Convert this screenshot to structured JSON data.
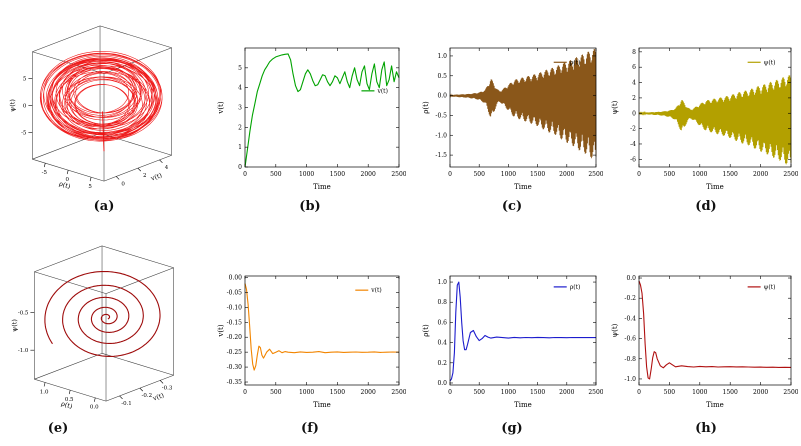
{
  "figure": {
    "background": "#ffffff"
  },
  "labels": {
    "a": "(a)",
    "b": "(b)",
    "c": "(c)",
    "d": "(d)",
    "e": "(e)",
    "f": "(f)",
    "g": "(g)",
    "h": "(h)"
  },
  "chart_data": [
    {
      "id": "a",
      "type": "3d-trajectory",
      "trajectory": "torus",
      "color": "#ee1111",
      "description": "dense quasi-periodic red attractor filling a 3D box, short vertical transient below",
      "axes": {
        "left": {
          "label": "ψ(t)",
          "ticks": [
            {
              "l": "5",
              "f": 0.75
            },
            {
              "l": "0",
              "f": 0.5
            },
            {
              "l": "-5",
              "f": 0.25
            }
          ]
        },
        "bottom": {
          "label": "ρ(t)",
          "ticks": [
            {
              "l": "-5",
              "f": 0.18
            },
            {
              "l": "0",
              "f": 0.5
            },
            {
              "l": "5",
              "f": 0.82
            }
          ]
        },
        "right": {
          "label": "v(t)",
          "ticks": [
            {
              "l": "0",
              "f": 0.18
            },
            {
              "l": "2",
              "f": 0.5
            },
            {
              "l": "4",
              "f": 0.82
            }
          ]
        }
      }
    },
    {
      "id": "b",
      "type": "line",
      "color": "#00a300",
      "xlabel": "Time",
      "ylabel": "v(t)",
      "legend": "v(t)",
      "legend_frac": [
        0.86,
        0.36
      ],
      "xlim": [
        0,
        2500
      ],
      "ylim": [
        0,
        6
      ],
      "xtick_v": [
        0,
        500,
        1000,
        1500,
        2000,
        2500
      ],
      "xtick_l": [
        "0",
        "500",
        "1000",
        "1500",
        "2000",
        "2500"
      ],
      "ytick_v": [
        0,
        1,
        2,
        3,
        4,
        5
      ],
      "ytick_l": [
        "0",
        "1",
        "2",
        "3",
        "4",
        "5"
      ],
      "x": [
        0,
        40,
        80,
        120,
        160,
        200,
        240,
        280,
        320,
        360,
        400,
        450,
        500,
        550,
        600,
        650,
        700,
        740,
        780,
        820,
        860,
        900,
        940,
        980,
        1020,
        1060,
        1100,
        1140,
        1180,
        1220,
        1260,
        1300,
        1340,
        1380,
        1420,
        1460,
        1500,
        1540,
        1580,
        1620,
        1660,
        1700,
        1740,
        1780,
        1820,
        1860,
        1900,
        1940,
        1980,
        2020,
        2060,
        2100,
        2140,
        2180,
        2220,
        2260,
        2300,
        2340,
        2380,
        2420,
        2460,
        2500
      ],
      "y": [
        0,
        0.9,
        1.8,
        2.6,
        3.2,
        3.8,
        4.2,
        4.6,
        4.9,
        5.1,
        5.3,
        5.45,
        5.55,
        5.6,
        5.65,
        5.68,
        5.7,
        5.4,
        4.7,
        4.1,
        3.8,
        3.9,
        4.3,
        4.7,
        4.9,
        4.7,
        4.35,
        4.1,
        4.15,
        4.4,
        4.65,
        4.6,
        4.3,
        4.1,
        4.3,
        4.6,
        4.5,
        4.2,
        4.5,
        4.8,
        4.3,
        4.0,
        4.6,
        5.0,
        4.4,
        4.1,
        4.8,
        5.1,
        4.2,
        3.9,
        4.7,
        5.2,
        4.3,
        4.0,
        4.9,
        5.3,
        4.1,
        4.4,
        5.1,
        4.3,
        4.8,
        4.5
      ]
    },
    {
      "id": "c",
      "type": "oscillatory-envelope",
      "color": "#8a571a",
      "xlabel": "Time",
      "ylabel": "ρ(t)",
      "legend": "ρ(t)",
      "legend_frac": [
        0.82,
        0.12
      ],
      "xlim": [
        0,
        2500
      ],
      "ylim": [
        -1.8,
        1.2
      ],
      "xtick_v": [
        0,
        500,
        1000,
        1500,
        2000,
        2500
      ],
      "xtick_l": [
        "0",
        "500",
        "1000",
        "1500",
        "2000",
        "2500"
      ],
      "ytick_v": [
        1.0,
        0.5,
        0.0,
        -0.5,
        -1.0,
        -1.5
      ],
      "ytick_l": [
        "1.0",
        "0.5",
        "0.0",
        "-0.5",
        "-1.0",
        "-1.5"
      ],
      "env_x": [
        0,
        100,
        200,
        300,
        400,
        500,
        600,
        650,
        700,
        750,
        800,
        850,
        900,
        1000,
        1100,
        1200,
        1300,
        1400,
        1500,
        1600,
        1700,
        1800,
        1900,
        2000,
        2100,
        2200,
        2300,
        2400,
        2500
      ],
      "env_amp": [
        0.02,
        0.03,
        0.04,
        0.05,
        0.07,
        0.1,
        0.18,
        0.35,
        0.55,
        0.4,
        0.22,
        0.15,
        0.2,
        0.35,
        0.5,
        0.55,
        0.6,
        0.65,
        0.7,
        0.78,
        0.85,
        0.9,
        1.0,
        1.08,
        1.15,
        1.25,
        1.32,
        1.42,
        1.5
      ]
    },
    {
      "id": "d",
      "type": "oscillatory-envelope",
      "color": "#b3a000",
      "xlabel": "Time",
      "ylabel": "ψ(t)",
      "legend": "ψ(t)",
      "legend_frac": [
        0.82,
        0.12
      ],
      "xlim": [
        0,
        2500
      ],
      "ylim": [
        -7,
        8.5
      ],
      "xtick_v": [
        0,
        500,
        1000,
        1500,
        2000,
        2500
      ],
      "xtick_l": [
        "0",
        "500",
        "1000",
        "1500",
        "2000",
        "2500"
      ],
      "ytick_v": [
        8,
        6,
        4,
        2,
        0,
        -2,
        -4,
        -6
      ],
      "ytick_l": [
        "8",
        "6",
        "4",
        "2",
        "0",
        "-2",
        "-4",
        "-6"
      ],
      "env_x": [
        0,
        100,
        200,
        300,
        400,
        500,
        600,
        650,
        700,
        750,
        800,
        850,
        900,
        1000,
        1100,
        1200,
        1300,
        1400,
        1500,
        1600,
        1700,
        1800,
        1900,
        2000,
        2100,
        2200,
        2300,
        2400,
        2500
      ],
      "env_amp": [
        0.08,
        0.12,
        0.17,
        0.22,
        0.3,
        0.45,
        0.8,
        1.5,
        2.3,
        1.7,
        0.95,
        0.65,
        0.85,
        1.5,
        2.1,
        2.3,
        2.5,
        2.7,
        2.95,
        3.3,
        3.6,
        3.8,
        4.2,
        4.55,
        4.85,
        5.25,
        5.55,
        6.0,
        6.3
      ]
    },
    {
      "id": "e",
      "type": "3d-trajectory",
      "trajectory": "inspiral",
      "color": "#9e0b0b",
      "description": "single dark-red spiral converging to a fixed point inside a 3D box",
      "axes": {
        "left": {
          "label": "ψ(t)",
          "ticks": [
            {
              "l": "-0.5",
              "f": 0.62
            },
            {
              "l": "-1.0",
              "f": 0.27
            }
          ]
        },
        "bottom": {
          "label": "ρ(t)",
          "ticks": [
            {
              "l": "1.0",
              "f": 0.15
            },
            {
              "l": "0.5",
              "f": 0.5
            },
            {
              "l": "0.0",
              "f": 0.85
            }
          ]
        },
        "right": {
          "label": "v(t)",
          "ticks": [
            {
              "l": "-0.1",
              "f": 0.2
            },
            {
              "l": "-0.2",
              "f": 0.5
            },
            {
              "l": "-0.3",
              "f": 0.8
            }
          ]
        }
      }
    },
    {
      "id": "f",
      "type": "line",
      "color": "#f28500",
      "xlabel": "Time",
      "ylabel": "v(t)",
      "legend": "v(t)",
      "legend_frac": [
        0.82,
        0.13
      ],
      "xlim": [
        0,
        2500
      ],
      "ylim": [
        -0.36,
        0.005
      ],
      "xtick_v": [
        0,
        500,
        1000,
        1500,
        2000,
        2500
      ],
      "xtick_l": [
        "0",
        "500",
        "1000",
        "1500",
        "2000",
        "2500"
      ],
      "ytick_v": [
        0,
        -0.05,
        -0.1,
        -0.15,
        -0.2,
        -0.25,
        -0.3,
        -0.35
      ],
      "ytick_l": [
        "0.00",
        "-0.05",
        "-0.10",
        "-0.15",
        "-0.20",
        "-0.25",
        "-0.30",
        "-0.35"
      ],
      "x": [
        0,
        25,
        50,
        75,
        100,
        125,
        150,
        175,
        200,
        225,
        250,
        275,
        300,
        350,
        400,
        450,
        500,
        550,
        600,
        650,
        700,
        800,
        900,
        1000,
        1100,
        1200,
        1300,
        1400,
        1500,
        1600,
        1700,
        1800,
        1900,
        2000,
        2100,
        2200,
        2300,
        2400,
        2500
      ],
      "y": [
        -0.02,
        -0.04,
        -0.09,
        -0.16,
        -0.24,
        -0.29,
        -0.31,
        -0.295,
        -0.26,
        -0.23,
        -0.235,
        -0.26,
        -0.27,
        -0.25,
        -0.24,
        -0.255,
        -0.25,
        -0.245,
        -0.252,
        -0.248,
        -0.25,
        -0.252,
        -0.249,
        -0.251,
        -0.25,
        -0.248,
        -0.252,
        -0.25,
        -0.249,
        -0.251,
        -0.25,
        -0.2495,
        -0.2505,
        -0.25,
        -0.249,
        -0.251,
        -0.25,
        -0.2495,
        -0.25
      ]
    },
    {
      "id": "g",
      "type": "line",
      "color": "#1c1ccd",
      "xlabel": "Time",
      "ylabel": "ρ(t)",
      "legend": "ρ(t)",
      "legend_frac": [
        0.82,
        0.1
      ],
      "xlim": [
        0,
        2500
      ],
      "ylim": [
        -0.02,
        1.06
      ],
      "xtick_v": [
        0,
        500,
        1000,
        1500,
        2000,
        2500
      ],
      "xtick_l": [
        "0",
        "500",
        "1000",
        "1500",
        "2000",
        "2500"
      ],
      "ytick_v": [
        1.0,
        0.8,
        0.6,
        0.4,
        0.2,
        0.0
      ],
      "ytick_l": [
        "1.0",
        "0.8",
        "0.6",
        "0.4",
        "0.2",
        "0.0"
      ],
      "x": [
        0,
        25,
        50,
        75,
        100,
        125,
        150,
        175,
        200,
        225,
        250,
        275,
        300,
        350,
        400,
        450,
        500,
        550,
        600,
        650,
        700,
        800,
        900,
        1000,
        1100,
        1200,
        1300,
        1400,
        1500,
        1600,
        1700,
        1800,
        1900,
        2000,
        2100,
        2200,
        2300,
        2400,
        2500
      ],
      "y": [
        0.02,
        0.04,
        0.1,
        0.3,
        0.7,
        0.97,
        1.0,
        0.85,
        0.6,
        0.42,
        0.33,
        0.33,
        0.38,
        0.5,
        0.52,
        0.46,
        0.42,
        0.44,
        0.47,
        0.455,
        0.445,
        0.455,
        0.45,
        0.445,
        0.452,
        0.448,
        0.451,
        0.449,
        0.452,
        0.45,
        0.448,
        0.451,
        0.45,
        0.449,
        0.451,
        0.45,
        0.4495,
        0.4505,
        0.45
      ]
    },
    {
      "id": "h",
      "type": "line",
      "color": "#b01010",
      "xlabel": "Time",
      "ylabel": "ψ(t)",
      "legend": "ψ(t)",
      "legend_frac": [
        0.82,
        0.1
      ],
      "xlim": [
        0,
        2500
      ],
      "ylim": [
        -1.06,
        0.02
      ],
      "xtick_v": [
        0,
        500,
        1000,
        1500,
        2000,
        2500
      ],
      "xtick_l": [
        "0",
        "500",
        "1000",
        "1500",
        "2000",
        "2500"
      ],
      "ytick_v": [
        0.0,
        -0.2,
        -0.4,
        -0.6,
        -0.8,
        -1.0
      ],
      "ytick_l": [
        "0.0",
        "-0.2",
        "-0.4",
        "-0.6",
        "-0.8",
        "-1.0"
      ],
      "x": [
        0,
        25,
        50,
        75,
        100,
        125,
        150,
        175,
        200,
        225,
        250,
        275,
        300,
        350,
        400,
        450,
        500,
        550,
        600,
        650,
        700,
        800,
        900,
        1000,
        1100,
        1200,
        1300,
        1400,
        1500,
        1600,
        1700,
        1800,
        1900,
        2000,
        2100,
        2200,
        2300,
        2400,
        2500
      ],
      "y": [
        -0.03,
        -0.07,
        -0.15,
        -0.35,
        -0.65,
        -0.88,
        -0.99,
        -1.0,
        -0.9,
        -0.79,
        -0.73,
        -0.74,
        -0.8,
        -0.87,
        -0.89,
        -0.86,
        -0.84,
        -0.86,
        -0.88,
        -0.875,
        -0.87,
        -0.878,
        -0.882,
        -0.876,
        -0.88,
        -0.878,
        -0.882,
        -0.88,
        -0.879,
        -0.881,
        -0.88,
        -0.882,
        -0.884,
        -0.883,
        -0.885,
        -0.884,
        -0.886,
        -0.885,
        -0.886
      ]
    }
  ]
}
